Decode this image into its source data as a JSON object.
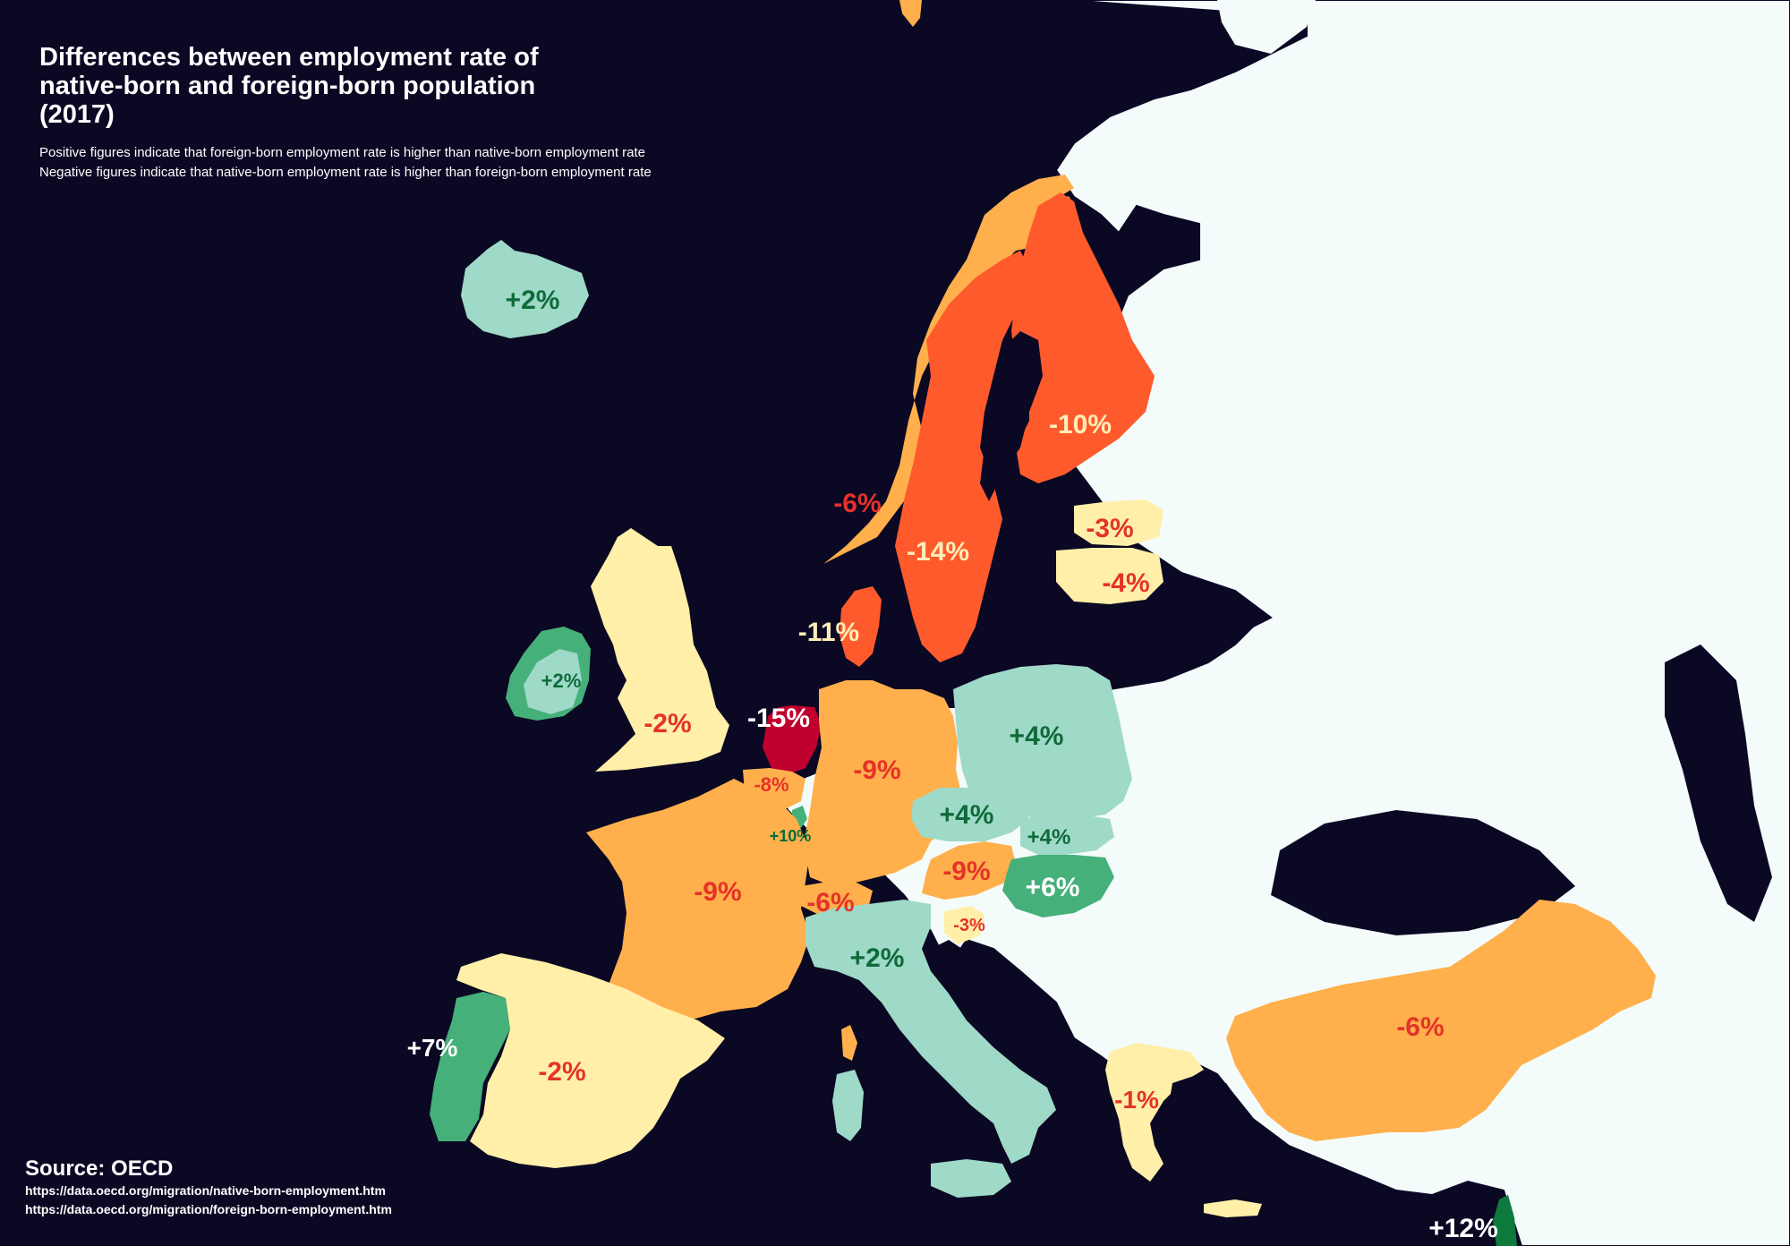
{
  "title_lines": [
    "Differences between employment rate of",
    "native-born and foreign-born population",
    "(2017)"
  ],
  "subtitle_lines": [
    "Positive figures indicate that foreign-born employment rate is higher than native-born employment rate",
    "Negative figures indicate that native-born employment rate is higher than foreign-born employment rate"
  ],
  "source": {
    "title": "Source: OECD",
    "links": [
      "https://data.oecd.org/migration/native-born-employment.htm",
      "https://data.oecd.org/migration/foreign-born-employment.htm"
    ]
  },
  "colors": {
    "sea": "#0b0824",
    "no_data": "#f4fbfb",
    "deep_red": "#c0002e",
    "red_orange": "#ff5a2c",
    "orange": "#ffb04c",
    "light_yellow": "#ffefa8",
    "light_teal": "#9fd9c8",
    "medium_green": "#45b07a",
    "dark_green": "#0e7a3e",
    "label_red": "#e5322a",
    "label_green": "#0f6b3a",
    "label_light": "#ffedb8",
    "label_white": "#ffffff"
  },
  "countries": [
    {
      "name": "iceland",
      "label": "+2%"
    },
    {
      "name": "ireland",
      "label": "+2%"
    },
    {
      "name": "united-kingdom",
      "label": "-2%"
    },
    {
      "name": "norway",
      "label": "-6%"
    },
    {
      "name": "sweden",
      "label": "-14%"
    },
    {
      "name": "finland",
      "label": "-10%"
    },
    {
      "name": "denmark",
      "label": "-11%"
    },
    {
      "name": "estonia",
      "label": "-3%"
    },
    {
      "name": "latvia",
      "label": "-4%"
    },
    {
      "name": "netherlands",
      "label": "-15%"
    },
    {
      "name": "belgium",
      "label": "-8%"
    },
    {
      "name": "luxembourg",
      "label": "+10%"
    },
    {
      "name": "germany",
      "label": "-9%"
    },
    {
      "name": "poland",
      "label": "+4%"
    },
    {
      "name": "czechia",
      "label": "+4%"
    },
    {
      "name": "slovakia",
      "label": "+4%"
    },
    {
      "name": "austria",
      "label": "-9%"
    },
    {
      "name": "hungary",
      "label": "+6%"
    },
    {
      "name": "switzerland",
      "label": "-6%"
    },
    {
      "name": "slovenia",
      "label": "-3%"
    },
    {
      "name": "france",
      "label": "-9%"
    },
    {
      "name": "italy",
      "label": "+2%"
    },
    {
      "name": "portugal",
      "label": "+7%"
    },
    {
      "name": "spain",
      "label": "-2%"
    },
    {
      "name": "greece",
      "label": "-1%"
    },
    {
      "name": "turkey",
      "label": "-6%"
    },
    {
      "name": "israel",
      "label": "+12%"
    }
  ]
}
